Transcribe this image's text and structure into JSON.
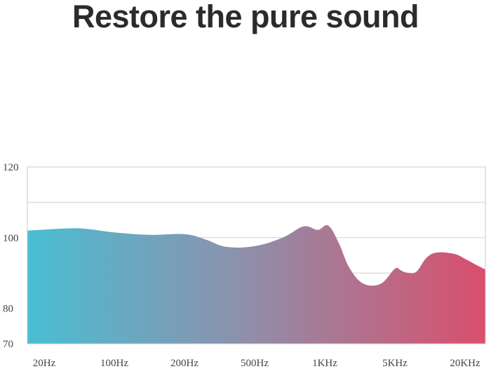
{
  "title": "Restore the pure sound",
  "chart_data": {
    "type": "area",
    "title": "Restore the pure sound",
    "xlabel": "",
    "ylabel": "",
    "ylim": [
      70,
      120
    ],
    "y_ticks": [
      {
        "value": 120,
        "label": "120"
      },
      {
        "value": 100,
        "label": "100"
      },
      {
        "value": 80,
        "label": "80"
      },
      {
        "value": 70,
        "label": "70"
      }
    ],
    "y_gridlines": [
      120,
      110,
      100,
      90
    ],
    "x_ticks": [
      "20Hz",
      "100Hz",
      "200Hz",
      "500Hz",
      "1KHz",
      "5KHz",
      "20KHz"
    ],
    "grid": true,
    "gradient_colors": [
      "#49bed3",
      "#8b92ad",
      "#d94f6c"
    ],
    "series": [
      {
        "x": [
          0,
          0.3,
          0.6,
          1.0,
          1.5,
          2.0,
          2.3,
          2.6,
          3.0,
          3.4,
          3.7,
          3.9,
          4.05,
          4.2,
          4.35,
          4.55,
          4.8,
          5.0,
          5.08,
          5.15,
          5.3,
          5.45,
          5.6,
          5.85,
          6.0,
          6.15,
          6.3
        ],
        "y": [
          102.0,
          102.6,
          102.5,
          101.5,
          100.8,
          101.0,
          99.5,
          97.4,
          97.6,
          100.0,
          103.2,
          102.2,
          103.4,
          98.5,
          91.5,
          87.0,
          87.0,
          91.2,
          90.8,
          90.2,
          90.3,
          94.3,
          95.8,
          95.4,
          94.0,
          92.4,
          91.0
        ]
      }
    ]
  }
}
